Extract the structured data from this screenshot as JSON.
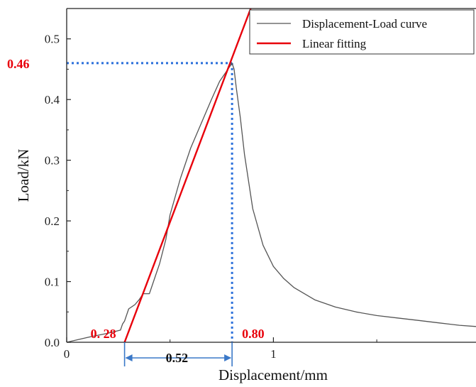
{
  "chart_data": {
    "type": "line",
    "xlabel": "Displacement/mm",
    "ylabel": "Load/kN",
    "xlim": [
      0,
      1.98
    ],
    "ylim": [
      0,
      0.55
    ],
    "x_ticks": [
      0,
      1
    ],
    "x_tick_labels": [
      "0",
      "1"
    ],
    "y_ticks": [
      0,
      0.1,
      0.2,
      0.3,
      0.4,
      0.5
    ],
    "y_tick_labels": [
      "0.0",
      "0.1",
      "0.2",
      "0.3",
      "0.4",
      "0.5"
    ],
    "grid": false,
    "legend_position": "top-right",
    "series": [
      {
        "name": "Displacement-Load curve",
        "color": "#555555",
        "x": [
          0,
          0.1,
          0.2,
          0.26,
          0.27,
          0.28,
          0.3,
          0.33,
          0.35,
          0.37,
          0.4,
          0.42,
          0.45,
          0.48,
          0.5,
          0.55,
          0.6,
          0.65,
          0.7,
          0.74,
          0.77,
          0.79,
          0.8,
          0.81,
          0.82,
          0.84,
          0.86,
          0.9,
          0.95,
          1.0,
          1.05,
          1.1,
          1.2,
          1.3,
          1.4,
          1.5,
          1.6,
          1.7,
          1.8,
          1.9,
          1.98
        ],
        "y": [
          0,
          0.008,
          0.015,
          0.02,
          0.03,
          0.035,
          0.055,
          0.062,
          0.07,
          0.08,
          0.08,
          0.1,
          0.13,
          0.17,
          0.21,
          0.27,
          0.32,
          0.36,
          0.4,
          0.43,
          0.445,
          0.455,
          0.46,
          0.45,
          0.42,
          0.37,
          0.31,
          0.22,
          0.16,
          0.125,
          0.105,
          0.09,
          0.07,
          0.058,
          0.05,
          0.044,
          0.04,
          0.036,
          0.032,
          0.028,
          0.026
        ]
      },
      {
        "name": "Linear fitting",
        "color": "#e8000b",
        "x": [
          0.28,
          0.89
        ],
        "y": [
          0.0,
          0.55
        ]
      }
    ],
    "annotations": {
      "peak_load_label": "0.46",
      "start_disp_label": "0. 28",
      "peak_disp_label": "0.80",
      "span_label": "0.52",
      "peak_load": 0.46,
      "start_disp": 0.28,
      "peak_disp": 0.8,
      "guide_color": "#2a6fdb",
      "arrow_color": "#3a78c8"
    }
  }
}
